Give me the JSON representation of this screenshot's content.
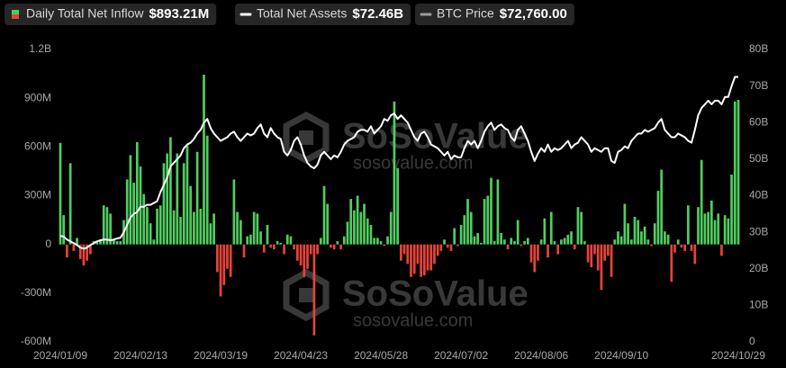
{
  "chart_data": {
    "type": "bar-line",
    "watermark": {
      "brand": "SoSoValue",
      "url": "sosovalue.com"
    },
    "categories": [
      "2024/01/09",
      null,
      null,
      null,
      null,
      null,
      null,
      null,
      null,
      null,
      null,
      null,
      null,
      null,
      null,
      null,
      null,
      null,
      null,
      null,
      null,
      null,
      null,
      null,
      "2024/02/13",
      null,
      null,
      null,
      null,
      null,
      null,
      null,
      null,
      null,
      null,
      null,
      null,
      null,
      null,
      null,
      null,
      null,
      null,
      null,
      null,
      null,
      null,
      null,
      "2024/03/19",
      null,
      null,
      null,
      null,
      null,
      null,
      null,
      null,
      null,
      null,
      null,
      null,
      null,
      null,
      null,
      null,
      null,
      null,
      null,
      null,
      null,
      null,
      null,
      "2024/04/23",
      null,
      null,
      null,
      null,
      null,
      null,
      null,
      null,
      null,
      null,
      null,
      null,
      null,
      null,
      null,
      null,
      null,
      null,
      null,
      null,
      null,
      null,
      null,
      "2024/05/28",
      null,
      null,
      null,
      null,
      null,
      null,
      null,
      null,
      null,
      null,
      null,
      null,
      null,
      null,
      null,
      null,
      null,
      null,
      null,
      null,
      null,
      null,
      null,
      "2024/07/02",
      null,
      null,
      null,
      null,
      null,
      null,
      null,
      null,
      null,
      null,
      null,
      null,
      null,
      null,
      null,
      null,
      null,
      null,
      null,
      null,
      null,
      null,
      null,
      "2024/08/06",
      null,
      null,
      null,
      null,
      null,
      null,
      null,
      null,
      null,
      null,
      null,
      null,
      null,
      null,
      null,
      null,
      null,
      null,
      null,
      null,
      null,
      null,
      null,
      "2024/09/10",
      null,
      null,
      null,
      null,
      null,
      null,
      null,
      null,
      null,
      null,
      null,
      null,
      null,
      null,
      null,
      null,
      null,
      null,
      null,
      null,
      null,
      null,
      null,
      null,
      null,
      null,
      null,
      null,
      null,
      null,
      null,
      null,
      null,
      null,
      "2024/10/29"
    ],
    "series": [
      {
        "name": "Daily Total Net Inflow",
        "latest_label": "$893.21M",
        "color": "#52cc60",
        "negative_color": "#e5443b",
        "mark": "bar",
        "values": [
          625,
          180,
          -80,
          500,
          -40,
          40,
          -90,
          -130,
          -100,
          -60,
          20,
          20,
          30,
          240,
          230,
          190,
          30,
          20,
          20,
          150,
          400,
          550,
          380,
          630,
          480,
          310,
          230,
          130,
          30,
          220,
          240,
          500,
          560,
          660,
          210,
          560,
          170,
          500,
          610,
          360,
          200,
          570,
          220,
          1045,
          670,
          130,
          190,
          -170,
          -320,
          -250,
          -150,
          -200,
          400,
          200,
          150,
          -80,
          50,
          60,
          200,
          190,
          80,
          -50,
          120,
          -20,
          -30,
          20,
          10,
          -60,
          60,
          50,
          -30,
          -100,
          -130,
          -200,
          -150,
          -60,
          -560,
          -60,
          40,
          360,
          250,
          -20,
          -30,
          20,
          -30,
          50,
          140,
          280,
          210,
          300,
          200,
          250,
          160,
          120,
          40,
          40,
          20,
          -10,
          50,
          200,
          880,
          470,
          -100,
          -60,
          -120,
          -200,
          -180,
          -120,
          -200,
          -190,
          -160,
          -160,
          -120,
          -70,
          -40,
          30,
          -20,
          -40,
          100,
          -10,
          120,
          180,
          280,
          200,
          50,
          70,
          10,
          280,
          300,
          410,
          20,
          400,
          70,
          30,
          -30,
          40,
          20,
          150,
          -10,
          20,
          40,
          -110,
          -170,
          -100,
          30,
          160,
          -80,
          200,
          20,
          -60,
          30,
          40,
          60,
          80,
          -30,
          230,
          200,
          20,
          -110,
          -140,
          -60,
          -160,
          -280,
          -100,
          -70,
          -200,
          30,
          80,
          50,
          250,
          130,
          30,
          170,
          150,
          80,
          110,
          30,
          -10,
          130,
          330,
          460,
          80,
          60,
          -230,
          -50,
          30,
          -20,
          -40,
          240,
          -40,
          -120,
          230,
          520,
          190,
          200,
          270,
          150,
          190,
          -70,
          180,
          160,
          430,
          880,
          890
        ]
      },
      {
        "name": "Total Net Assets",
        "latest_label": "$72.46B",
        "color": "#ffffff",
        "mark": "line",
        "axis": "y2",
        "values": [
          29,
          28.8,
          28,
          27.5,
          27,
          26.5,
          25.8,
          25.5,
          25.8,
          26.5,
          27,
          27.5,
          27.8,
          28,
          28,
          27.8,
          28,
          28.3,
          28.5,
          30,
          32,
          34,
          35,
          35.5,
          37,
          37,
          37.5,
          37.5,
          38,
          38.5,
          41,
          43,
          45,
          48,
          49,
          50,
          51,
          53,
          54,
          54.5,
          55.5,
          57,
          58,
          60,
          61,
          58.5,
          57,
          56,
          55,
          55.5,
          56,
          57,
          57.5,
          56,
          55,
          56,
          57,
          56.5,
          57,
          58.5,
          59.5,
          57,
          56,
          58.5,
          57,
          56,
          55.5,
          52,
          51,
          52.5,
          55,
          56,
          54,
          51,
          49,
          48,
          47.5,
          48.5,
          51,
          52,
          51,
          50,
          51,
          50.5,
          52,
          54,
          55,
          55.5,
          56,
          57.5,
          58,
          58,
          57.5,
          59,
          57,
          58,
          59,
          61,
          60.5,
          62,
          62.5,
          61,
          62,
          61,
          60,
          58,
          56,
          55,
          57,
          57.5,
          56,
          54,
          53.5,
          53,
          52,
          51,
          52,
          50,
          51,
          50.5,
          50.5,
          53,
          55,
          54,
          55,
          53,
          55,
          57.5,
          59,
          60,
          58,
          59,
          59.5,
          58.5,
          58,
          56,
          55,
          58,
          59,
          57,
          55,
          52,
          49.5,
          51.5,
          53,
          52,
          54,
          52,
          53,
          52.5,
          53,
          54,
          55,
          53,
          54,
          54.5,
          56,
          55,
          54,
          52,
          53,
          52.5,
          52,
          53,
          53,
          49.5,
          49,
          52,
          52.5,
          53.5,
          53,
          55,
          56,
          57,
          57,
          58,
          57.5,
          58,
          58.5,
          60,
          61,
          58,
          57,
          56,
          56,
          57,
          56.5,
          56,
          55,
          54.5,
          58,
          62,
          64,
          65,
          66,
          65,
          66,
          66,
          65,
          67,
          67,
          70,
          72.5,
          72.5
        ]
      },
      {
        "name": "BTC Price",
        "latest_label": "$72,760.00",
        "color": "#9c9c9c",
        "mark": "hidden"
      }
    ],
    "ylim": [
      -600,
      1200
    ],
    "yticks": [
      {
        "value": 1200,
        "label": "1.2B"
      },
      {
        "value": 900,
        "label": "900M"
      },
      {
        "value": 600,
        "label": "600M"
      },
      {
        "value": 300,
        "label": "300M"
      },
      0,
      {
        "value": -300,
        "label": "-300M"
      },
      {
        "value": -600,
        "label": "-600M"
      }
    ],
    "y2lim": [
      0,
      80
    ],
    "y2ticks": [
      {
        "value": 80,
        "label": "80B"
      },
      {
        "value": 70,
        "label": "70B"
      },
      {
        "value": 60,
        "label": "60B"
      },
      {
        "value": 50,
        "label": "50B"
      },
      {
        "value": 40,
        "label": "40B"
      },
      {
        "value": 30,
        "label": "30B"
      },
      {
        "value": 20,
        "label": "20B"
      },
      {
        "value": 10,
        "label": "10B"
      },
      0
    ],
    "grid": false
  }
}
